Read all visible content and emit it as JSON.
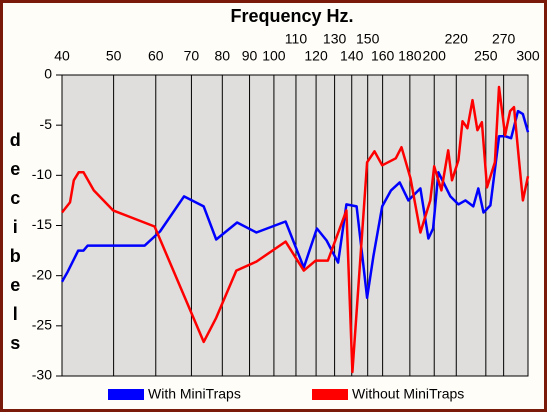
{
  "chart_data": {
    "type": "line",
    "title": "Frequency Hz.",
    "y_label": "decibels",
    "x_scale": "log",
    "grid": "x",
    "xlim": [
      40,
      300
    ],
    "xticks": [
      40,
      50,
      60,
      70,
      80,
      90,
      100,
      110,
      120,
      130,
      140,
      150,
      160,
      180,
      200,
      220,
      250,
      270,
      300
    ],
    "ylim": [
      -30,
      0
    ],
    "yticks": [
      0,
      -5,
      -10,
      -15,
      -20,
      -25,
      -30
    ],
    "legend": "bottom",
    "series": [
      {
        "name": "With MiniTraps",
        "color": "#0000ff",
        "x": [
          40,
          41,
          42.9,
          43.9,
          44.7,
          47.1,
          57.2,
          61.1,
          67.8,
          73.8,
          77.9,
          85.3,
          92.7,
          105.2,
          113.8,
          120.4,
          125.6,
          132,
          136.8,
          143,
          149.6,
          153.8,
          159.7,
          165.9,
          172.3,
          178.9,
          188.4,
          195,
          199,
          203.6,
          214.5,
          222,
          228.9,
          236.8,
          242,
          247.5,
          255,
          264.8,
          271.7,
          278.8,
          287.3,
          293.5,
          300
        ],
        "values": [
          -20.6,
          -19.6,
          -17.5,
          -17.5,
          -17,
          -17,
          -17,
          -15.6,
          -12.1,
          -13.1,
          -16.4,
          -14.7,
          -15.7,
          -14.6,
          -19.2,
          -15.3,
          -16.5,
          -18.7,
          -12.9,
          -13.1,
          -22.2,
          -18,
          -13.1,
          -11.5,
          -10.7,
          -12.5,
          -11.3,
          -16.3,
          -15.3,
          -9.7,
          -12.1,
          -12.9,
          -12.5,
          -13.1,
          -11.3,
          -13.7,
          -13,
          -6.1,
          -6.1,
          -6.3,
          -3.6,
          -3.9,
          -5.7
        ]
      },
      {
        "name": "Without MiniTraps",
        "color": "#ff0000",
        "x": [
          40,
          41.4,
          42.1,
          43,
          43.9,
          45.9,
          49.9,
          59.7,
          73.8,
          77.9,
          85,
          92.7,
          105.2,
          113.8,
          119.8,
          126.3,
          136.8,
          140.4,
          149.6,
          154.5,
          159.7,
          169.4,
          173.6,
          180.5,
          188.4,
          196.6,
          200,
          206.3,
          212.5,
          216,
          222,
          226,
          230.8,
          236,
          241,
          245.8,
          251.3,
          260,
          264.7,
          271.7,
          277.6,
          282.4,
          288.5,
          293.5,
          300
        ],
        "values": [
          -13.7,
          -12.7,
          -10.5,
          -9.7,
          -9.7,
          -11.5,
          -13.5,
          -15.1,
          -26.6,
          -24.2,
          -19.5,
          -18.6,
          -16.6,
          -19.5,
          -18.5,
          -18.5,
          -13.5,
          -29.6,
          -8.7,
          -7.6,
          -9,
          -8.3,
          -7.2,
          -10.3,
          -15.7,
          -12.5,
          -9.1,
          -11.5,
          -7.5,
          -10.5,
          -8.5,
          -4.6,
          -5.3,
          -2.5,
          -5.5,
          -4.7,
          -11.2,
          -8.7,
          -1.2,
          -6,
          -3.6,
          -3.2,
          -8.5,
          -12.5,
          -10.1
        ]
      }
    ]
  }
}
